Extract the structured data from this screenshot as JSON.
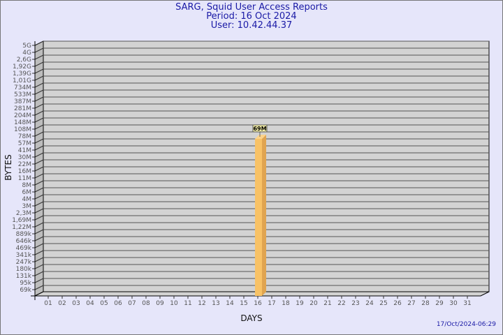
{
  "header": {
    "title": "SARG, Squid User Access Reports",
    "period": "Period: 16 Oct 2024",
    "user": "User: 10.42.44.37"
  },
  "footer": "17/Oct/2024-06:29",
  "colors": {
    "background": "#e6e6fa",
    "plot": "#d3d3d3",
    "bar": "#f8c266",
    "bar_side": "#e0a450",
    "title": "#1a1aa6"
  },
  "chart_data": {
    "type": "bar",
    "xlabel": "DAYS",
    "ylabel": "BYTES",
    "y_scale": "log",
    "grid": true,
    "y_ticks": [
      "5G",
      "4G",
      "2,6G",
      "1,92G",
      "1,39G",
      "1,01G",
      "734M",
      "533M",
      "387M",
      "281M",
      "204M",
      "148M",
      "108M",
      "78M",
      "57M",
      "41M",
      "30M",
      "22M",
      "16M",
      "11M",
      "8M",
      "6M",
      "4M",
      "3M",
      "2,3M",
      "1,69M",
      "1,22M",
      "889k",
      "646k",
      "469k",
      "341k",
      "247k",
      "180k",
      "131k",
      "95k",
      "69k"
    ],
    "categories": [
      "01",
      "02",
      "03",
      "04",
      "05",
      "06",
      "07",
      "08",
      "09",
      "10",
      "11",
      "12",
      "13",
      "14",
      "15",
      "16",
      "17",
      "18",
      "19",
      "20",
      "21",
      "22",
      "23",
      "24",
      "25",
      "26",
      "27",
      "28",
      "29",
      "30",
      "31"
    ],
    "bars": [
      {
        "day": "16",
        "value": "69M",
        "label": "69M"
      }
    ]
  }
}
